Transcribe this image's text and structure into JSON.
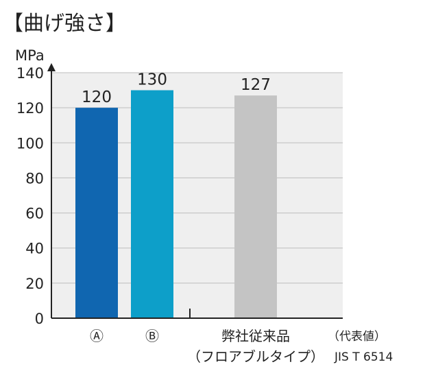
{
  "chart_data": {
    "type": "bar",
    "title": "【曲げ強さ】",
    "ylabel": "MPa",
    "ylim": [
      0,
      140
    ],
    "yticks": [
      0,
      20,
      40,
      60,
      80,
      100,
      120,
      140
    ],
    "grid": true,
    "categories": [
      "Ⓐ",
      "Ⓑ",
      "弊社従来品"
    ],
    "category_sublabels": [
      "",
      "",
      "（フロアブルタイプ）"
    ],
    "values": [
      120,
      130,
      127
    ],
    "bar_colors": [
      "#1066b0",
      "#0d9fc9",
      "#c4c4c4"
    ],
    "label_colors": [
      "#1066b0",
      "#0d9fc9",
      "#222222"
    ],
    "note": "（代表値）",
    "standard": "JIS T 6514"
  }
}
